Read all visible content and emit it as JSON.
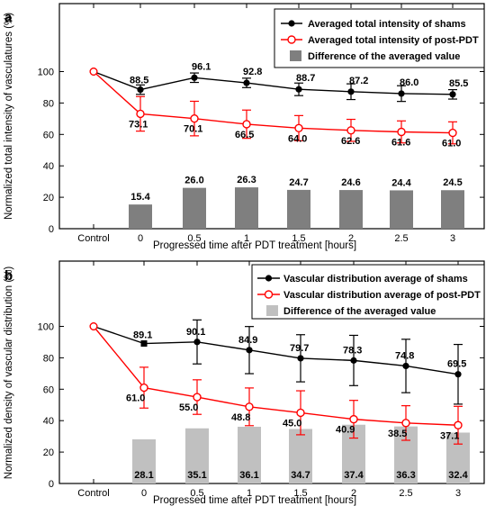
{
  "chart_data": [
    {
      "type": "line",
      "panel_label": "a",
      "categories": [
        "Control",
        "0",
        "0.5",
        "1",
        "1.5",
        "2",
        "2.5",
        "3"
      ],
      "xlabel": "Progressed time after PDT treatment [hours]",
      "ylabel": "Normalized total intensity of vasculatures (%)",
      "ylim": [
        0,
        140
      ],
      "yticks": [
        "0",
        "20",
        "40",
        "60",
        "80",
        "100"
      ],
      "legend_position": "top-right",
      "series": [
        {
          "name": "Averaged total intensity of shams",
          "kind": "line",
          "color": "#000000",
          "marker": "filled-circle",
          "values": [
            100,
            88.5,
            96.1,
            92.8,
            88.7,
            87.2,
            86.0,
            85.5
          ],
          "errors": [
            0,
            3,
            3,
            3,
            4,
            5,
            5,
            3
          ],
          "labels": [
            "",
            "88.5",
            "96.1",
            "92.8",
            "88.7",
            "87.2",
            "86.0",
            "85.5"
          ]
        },
        {
          "name": "Averaged total intensity of post-PDT",
          "kind": "line",
          "color": "#ff0000",
          "marker": "open-circle",
          "values": [
            100,
            73.1,
            70.1,
            66.5,
            64.0,
            62.6,
            61.6,
            61.0
          ],
          "errors": [
            0,
            11,
            11,
            9,
            8,
            7,
            7,
            7
          ],
          "labels": [
            "",
            "73.1",
            "70.1",
            "66.5",
            "64.0",
            "62.6",
            "61.6",
            "61.0"
          ]
        },
        {
          "name": "Difference of the averaged value",
          "kind": "bar",
          "color": "#7f7f7f",
          "values": [
            null,
            15.4,
            26.0,
            26.3,
            24.7,
            24.6,
            24.4,
            24.5
          ],
          "labels": [
            "",
            "15.4",
            "26.0",
            "26.3",
            "24.7",
            "24.6",
            "24.4",
            "24.5"
          ]
        }
      ]
    },
    {
      "type": "line",
      "panel_label": "b",
      "categories": [
        "Control",
        "0",
        "0.5",
        "1",
        "1.5",
        "2",
        "2.5",
        "3"
      ],
      "xlabel": "Progressed time after PDT treatment [hours]",
      "ylabel": "Normalized density of vascular distribution (%)",
      "ylim": [
        0,
        140
      ],
      "yticks": [
        "0",
        "20",
        "40",
        "60",
        "80",
        "100"
      ],
      "legend_position": "top-right",
      "series": [
        {
          "name": "Vascular distribution average of shams",
          "kind": "line",
          "color": "#000000",
          "marker": "filled-circle",
          "values": [
            100,
            89.1,
            90.1,
            84.9,
            79.7,
            78.3,
            74.8,
            69.5
          ],
          "errors": [
            0,
            0,
            14,
            15,
            15,
            16,
            17,
            19
          ],
          "labels": [
            "",
            "89.1",
            "90.1",
            "84.9",
            "79.7",
            "78.3",
            "74.8",
            "69.5"
          ]
        },
        {
          "name": "Vascular distribution average of post-PDT",
          "kind": "line",
          "color": "#ff0000",
          "marker": "open-circle",
          "values": [
            100,
            61.0,
            55.0,
            48.8,
            45.0,
            40.9,
            38.5,
            37.1
          ],
          "errors": [
            0,
            13,
            11,
            12,
            14,
            12,
            11,
            12
          ],
          "labels": [
            "",
            "61.0",
            "55.0",
            "48.8",
            "45.0",
            "40.9",
            "38.5",
            "37.1"
          ]
        },
        {
          "name": "Difference of the averaged value",
          "kind": "bar",
          "color": "#c0c0c0",
          "values": [
            null,
            28.1,
            35.1,
            36.1,
            34.7,
            37.4,
            36.3,
            32.4
          ],
          "labels": [
            "",
            "28.1",
            "35.1",
            "36.1",
            "34.7",
            "37.4",
            "36.3",
            "32.4"
          ]
        }
      ]
    }
  ]
}
